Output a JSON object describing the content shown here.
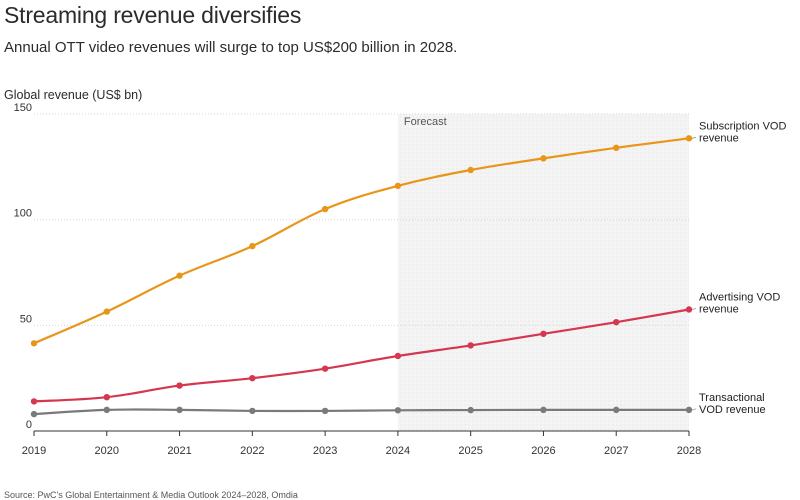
{
  "chart_data": {
    "type": "line",
    "title": "Streaming revenue diversifies",
    "subtitle": "Annual OTT video revenues will surge to top US$200 billion in 2028.",
    "ylabel": "Global revenue (US$ bn)",
    "xlabel": "",
    "x": [
      2019,
      2020,
      2021,
      2022,
      2023,
      2024,
      2025,
      2026,
      2027,
      2028
    ],
    "xlim": [
      2019,
      2028
    ],
    "ylim": [
      0,
      150
    ],
    "yticks": [
      0,
      50,
      100,
      150
    ],
    "grid": true,
    "forecast": {
      "label": "Forecast",
      "start": 2024,
      "end": 2028
    },
    "series": [
      {
        "name": "Subscription VOD revenue",
        "label_lines": [
          "Subscription VOD",
          "revenue"
        ],
        "color": "#E8961A",
        "values": [
          41.5,
          56.5,
          73.5,
          87.5,
          105,
          116,
          123.5,
          129,
          134,
          138.5
        ]
      },
      {
        "name": "Advertising VOD revenue",
        "label_lines": [
          "Advertising VOD",
          "revenue"
        ],
        "color": "#D4374F",
        "values": [
          14,
          16,
          21.5,
          25,
          29.5,
          35.5,
          40.5,
          46,
          51.5,
          57.5
        ]
      },
      {
        "name": "Transactional VOD revenue",
        "label_lines": [
          "Transactional",
          "VOD revenue"
        ],
        "color": "#7A7A7A",
        "values": [
          8,
          10,
          10,
          9.5,
          9.5,
          9.8,
          9.9,
          10,
          10,
          10
        ]
      }
    ]
  },
  "source": "Source: PwC's Global Entertainment & Media Outlook 2024–2028, Omdia"
}
